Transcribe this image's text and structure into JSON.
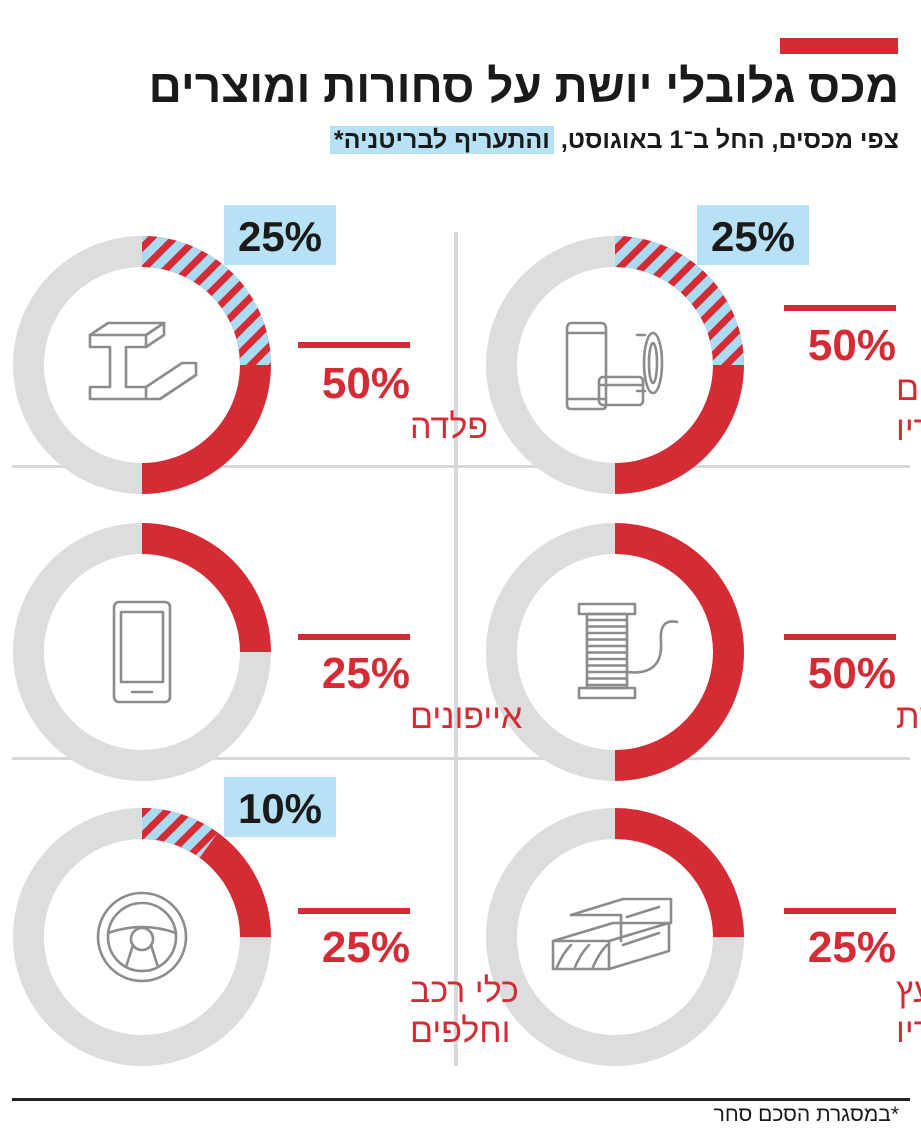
{
  "header": {
    "title": "מכס גלובלי יושת על סחורות ומוצרים",
    "subtitle_main": "צפי מכסים, החל ב־1 באוגוסט,",
    "subtitle_highlight": "והתעריף לבריטניה*"
  },
  "footnote": "*במסגרת הסכם סחר",
  "colors": {
    "global_tariff": "#d52b35",
    "uk_tariff_hatch_stripe": "#d52b35",
    "uk_tariff_hatch_fill": "#a9dcf3",
    "ring_background": "#dddddd",
    "uk_label_background": "#b7e1f4"
  },
  "chart_data": [
    {
      "type": "pie",
      "category": "אלומיניום ומוצריו",
      "label_lines": [
        "אלומיניום",
        "ומוצריו"
      ],
      "tariff_percent": 50,
      "tariff_label": "50%",
      "uk_tariff_percent": 25,
      "uk_label": "25%",
      "icon": "aluminum-cans-icon"
    },
    {
      "type": "pie",
      "category": "פלדה",
      "label_lines": [
        "פלדה"
      ],
      "tariff_percent": 50,
      "tariff_label": "50%",
      "uk_tariff_percent": 25,
      "uk_label": "25%",
      "icon": "steel-beam-icon"
    },
    {
      "type": "pie",
      "category": "נחושת",
      "label_lines": [
        "נחושת"
      ],
      "tariff_percent": 50,
      "tariff_label": "50%",
      "icon": "copper-wire-spool-icon"
    },
    {
      "type": "pie",
      "category": "אייפונים",
      "label_lines": [
        "אייפונים"
      ],
      "tariff_percent": 25,
      "tariff_label": "25%",
      "icon": "smartphone-icon"
    },
    {
      "type": "pie",
      "category": "עץ ומוצריו",
      "label_lines": [
        "עץ",
        "ומוצריו"
      ],
      "tariff_percent": 25,
      "tariff_label": "25%",
      "icon": "lumber-icon"
    },
    {
      "type": "pie",
      "category": "כלי רכב וחלפים",
      "label_lines": [
        "כלי רכב",
        "וחלפים"
      ],
      "tariff_percent": 25,
      "tariff_label": "25%",
      "uk_tariff_percent": 10,
      "uk_label": "10%",
      "icon": "steering-wheel-icon"
    }
  ]
}
